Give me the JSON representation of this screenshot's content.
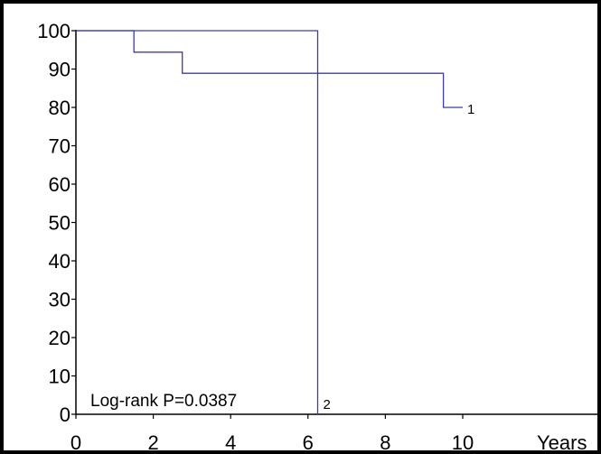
{
  "chart_data": {
    "type": "line",
    "title": "",
    "xlabel": "Years",
    "ylabel": "",
    "xlim": [
      0,
      13
    ],
    "ylim": [
      0,
      100
    ],
    "x_ticks": [
      0,
      2,
      4,
      6,
      8,
      10
    ],
    "y_ticks": [
      0,
      10,
      20,
      30,
      40,
      50,
      60,
      70,
      80,
      90,
      100
    ],
    "grid": false,
    "annotation": "Log-rank  P=0.0387",
    "line_color": "#3c3caa",
    "series": [
      {
        "name": "1",
        "step": true,
        "points": [
          [
            0,
            100
          ],
          [
            1.5,
            100
          ],
          [
            1.5,
            94.4
          ],
          [
            2.75,
            94.4
          ],
          [
            2.75,
            88.9
          ],
          [
            9.5,
            88.9
          ],
          [
            9.5,
            80
          ],
          [
            10,
            80
          ]
        ]
      },
      {
        "name": "2",
        "step": true,
        "points": [
          [
            0,
            100
          ],
          [
            6.25,
            100
          ],
          [
            6.25,
            0
          ]
        ]
      }
    ]
  }
}
